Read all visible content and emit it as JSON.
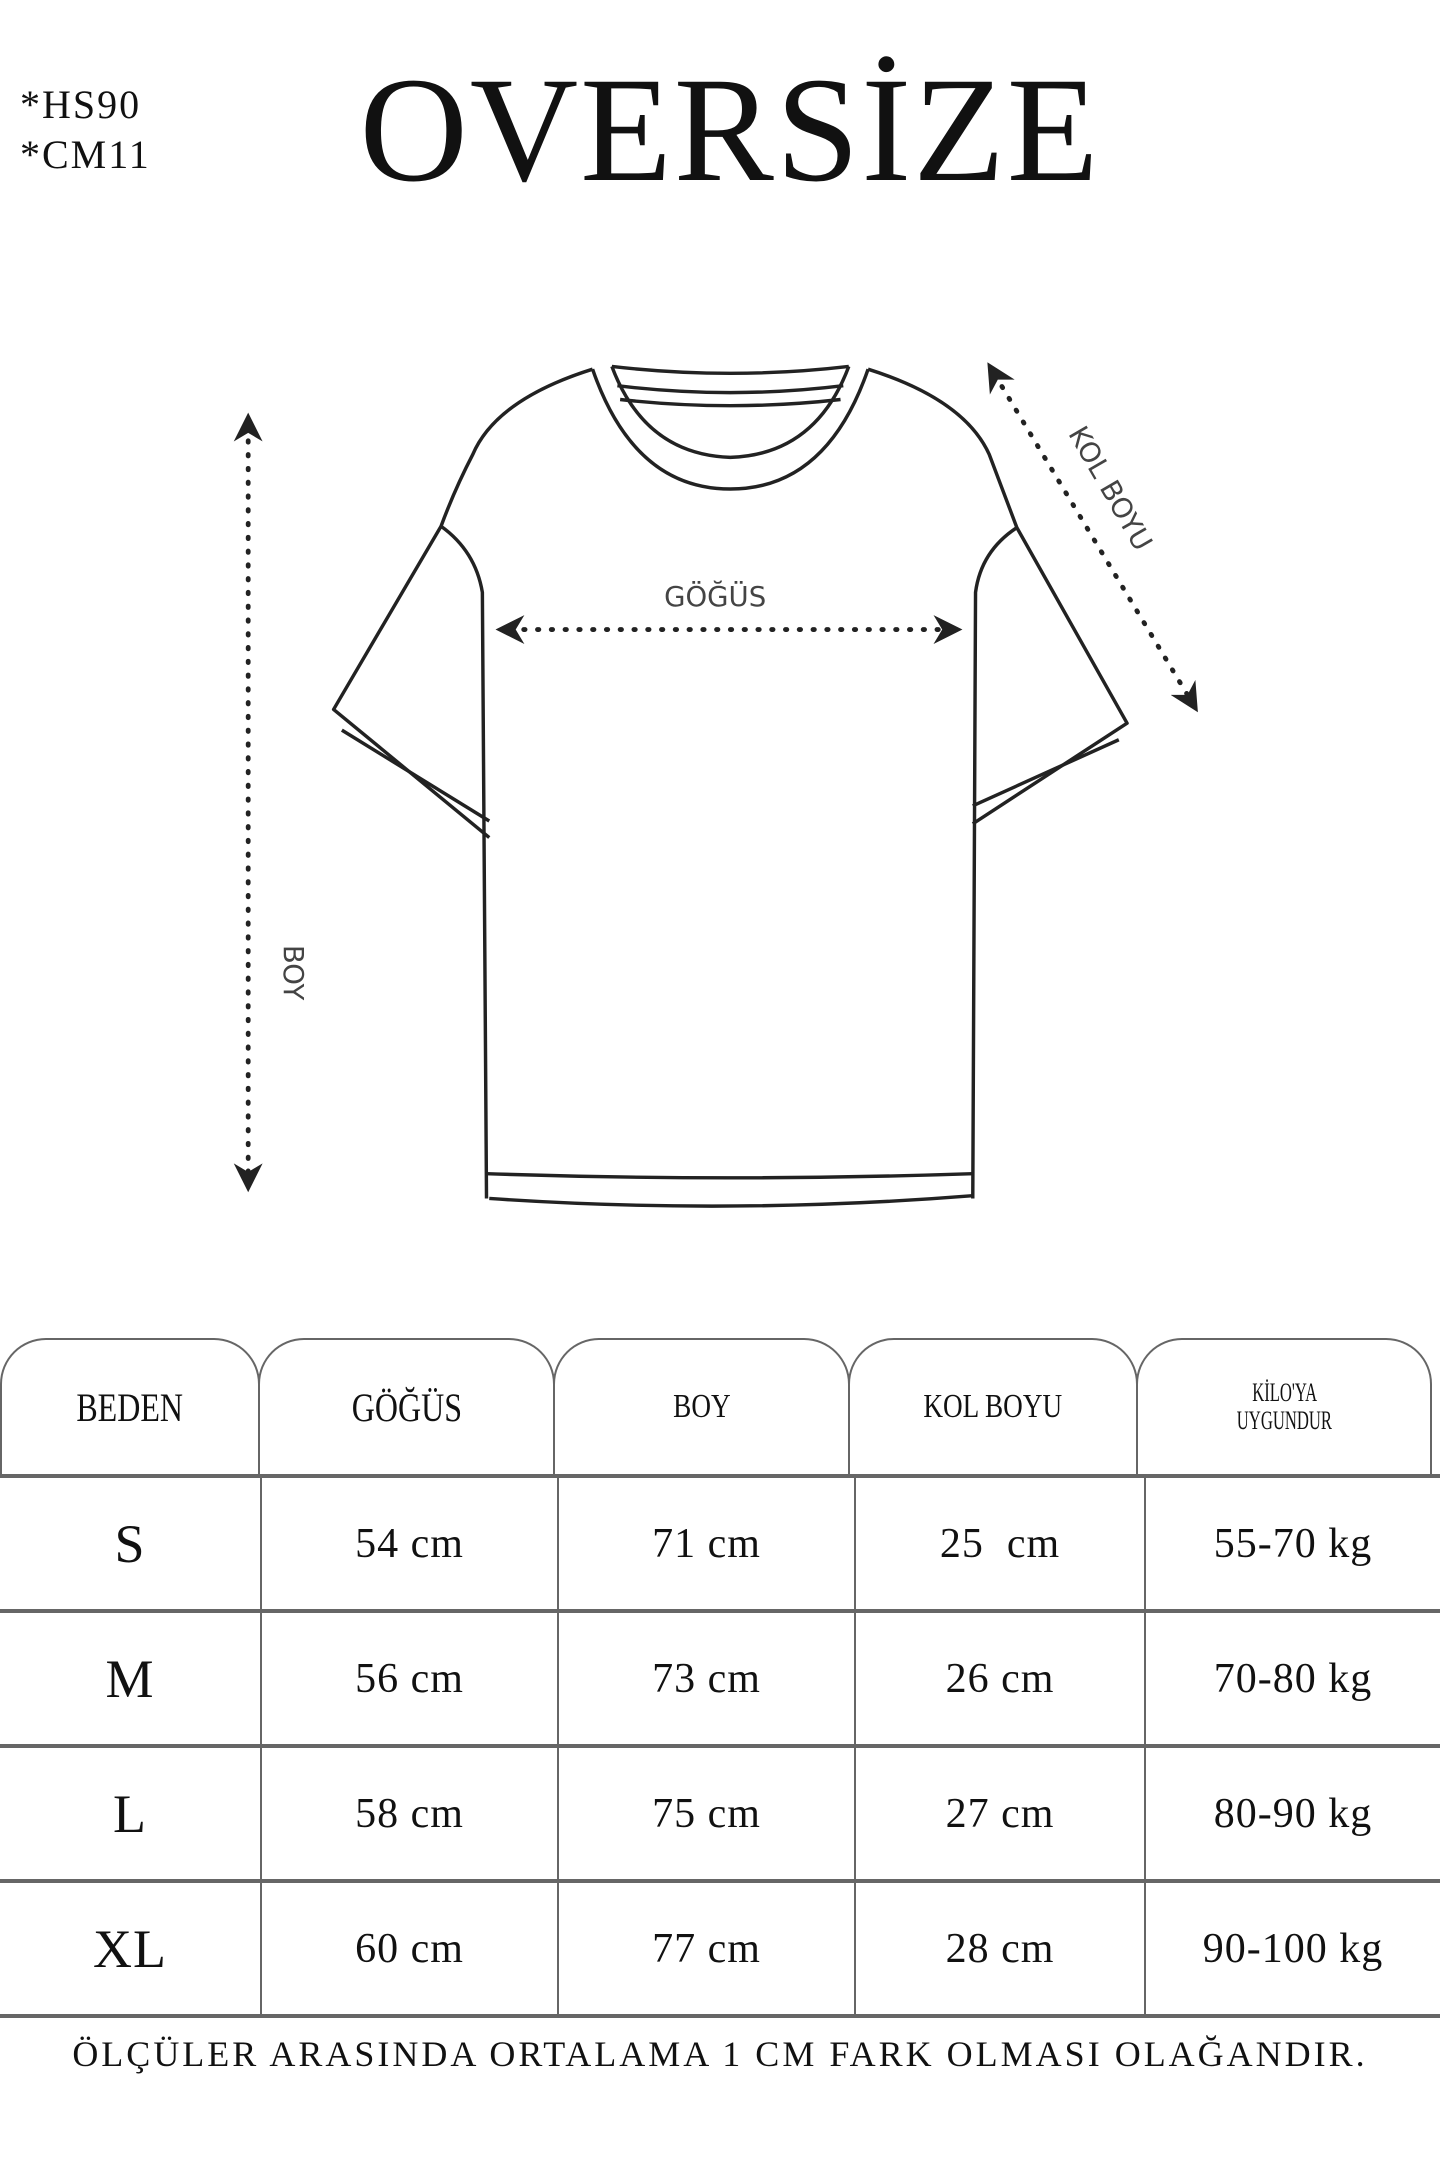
{
  "codes": [
    "*HS90",
    "*CM11"
  ],
  "title": "OVERSİZE",
  "diagram": {
    "labels": {
      "chest": "GÖĞÜS",
      "length": "BOY",
      "sleeve": "KOL BOYU"
    }
  },
  "table": {
    "headers": [
      "BEDEN",
      "GÖĞÜS",
      "BOY",
      "KOL BOYU",
      "KİLO'YA UYGUNDUR"
    ],
    "header_lines_last": [
      "KİLO'YA",
      "UYGUNDUR"
    ],
    "rows": [
      [
        "S",
        "54 cm",
        "71 cm",
        "25  cm",
        "55-70 kg"
      ],
      [
        "M",
        "56 cm",
        "73 cm",
        "26 cm",
        "70-80 kg"
      ],
      [
        "L",
        "58 cm",
        "75 cm",
        "27 cm",
        "80-90 kg"
      ],
      [
        "XL",
        "60 cm",
        "77 cm",
        "28 cm",
        "90-100 kg"
      ]
    ]
  },
  "footer": "ÖLÇÜLER ARASINDA ORTALAMA 1 CM FARK OLMASI OLAĞANDIR."
}
